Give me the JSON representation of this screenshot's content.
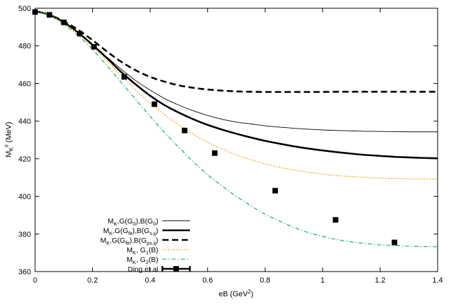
{
  "chart_data": {
    "type": "line",
    "xlabel": {
      "main": "eB (GeV",
      "sup": "2",
      "tail": ")"
    },
    "ylabel": {
      "main": "M",
      "sub": "K",
      "sup": "0",
      "tail": " (MeV)"
    },
    "xlim": [
      0,
      1.4
    ],
    "ylim": [
      360,
      500
    ],
    "xticks": [
      0,
      0.2,
      0.4,
      0.6,
      0.8,
      1,
      1.2,
      1.4
    ],
    "xtick_labels": [
      "0",
      "0.2",
      "0.4",
      "0.6",
      "0.8",
      "1",
      "1.2",
      "1.4"
    ],
    "yticks": [
      360,
      380,
      400,
      420,
      440,
      460,
      480,
      500
    ],
    "ytick_labels": [
      "360",
      "380",
      "400",
      "420",
      "440",
      "460",
      "480",
      "500"
    ],
    "grid": false,
    "legend_position": "bottom-left",
    "series": [
      {
        "legend": [
          {
            "t": "M"
          },
          {
            "t": "K",
            "s": "sub"
          },
          {
            "t": ",G(G"
          },
          {
            "t": "0",
            "s": "sub"
          },
          {
            "t": "),B(G"
          },
          {
            "t": "0",
            "s": "sub"
          },
          {
            "t": ")"
          }
        ],
        "style": "thin-solid",
        "color": "#000000",
        "x": [
          0,
          0.05,
          0.1,
          0.15,
          0.2,
          0.25,
          0.3,
          0.35,
          0.4,
          0.45,
          0.5,
          0.55,
          0.6,
          0.65,
          0.7,
          0.75,
          0.8,
          0.85,
          0.9,
          0.95,
          1.0,
          1.05,
          1.1,
          1.15,
          1.2,
          1.25,
          1.3,
          1.35,
          1.4
        ],
        "y": [
          498.5,
          496.5,
          492.5,
          487.0,
          480.5,
          474.0,
          467.5,
          461.5,
          456.5,
          452.0,
          448.5,
          445.5,
          443.0,
          441.0,
          439.5,
          438.5,
          437.5,
          436.8,
          436.2,
          435.7,
          435.3,
          435.0,
          434.8,
          434.6,
          434.5,
          434.4,
          434.3,
          434.3,
          434.3
        ]
      },
      {
        "legend": [
          {
            "t": "M"
          },
          {
            "t": "K",
            "s": "sub"
          },
          {
            "t": ",G(G"
          },
          {
            "t": "fit",
            "s": "sub"
          },
          {
            "t": "),B(G"
          },
          {
            "t": "s,ij",
            "s": "sub"
          },
          {
            "t": ")"
          }
        ],
        "style": "thick-solid",
        "color": "#000000",
        "x": [
          0,
          0.05,
          0.1,
          0.15,
          0.2,
          0.25,
          0.3,
          0.35,
          0.4,
          0.45,
          0.5,
          0.55,
          0.6,
          0.65,
          0.7,
          0.75,
          0.8,
          0.85,
          0.9,
          0.95,
          1.0,
          1.05,
          1.1,
          1.15,
          1.2,
          1.25,
          1.3,
          1.35,
          1.4
        ],
        "y": [
          498.5,
          496.5,
          492.5,
          487.0,
          480.5,
          473.5,
          466.0,
          459.5,
          453.5,
          448.5,
          444.5,
          441.0,
          438.0,
          435.5,
          433.3,
          431.3,
          429.5,
          428.0,
          426.6,
          425.4,
          424.4,
          423.5,
          422.7,
          422.0,
          421.5,
          421.0,
          420.7,
          420.4,
          420.2
        ]
      },
      {
        "legend": [
          {
            "t": "M"
          },
          {
            "t": "K",
            "s": "sub"
          },
          {
            "t": ",G(G"
          },
          {
            "t": "fit",
            "s": "sub"
          },
          {
            "t": "),B(G"
          },
          {
            "t": "ps,ij",
            "s": "sub"
          },
          {
            "t": ")"
          }
        ],
        "style": "thick-dashed",
        "color": "#000000",
        "x": [
          0,
          0.05,
          0.1,
          0.15,
          0.2,
          0.25,
          0.3,
          0.35,
          0.4,
          0.45,
          0.5,
          0.55,
          0.6,
          0.65,
          0.7,
          0.75,
          0.8,
          0.85,
          0.9,
          0.95,
          1.0,
          1.05,
          1.1,
          1.15,
          1.2,
          1.25,
          1.3,
          1.35,
          1.4
        ],
        "y": [
          498.5,
          496.5,
          493.0,
          488.5,
          483.0,
          477.0,
          471.5,
          467.0,
          463.5,
          461.0,
          459.0,
          457.7,
          456.8,
          456.2,
          455.8,
          455.6,
          455.5,
          455.5,
          455.5,
          455.5,
          455.5,
          455.6,
          455.6,
          455.6,
          455.6,
          455.6,
          455.6,
          455.6,
          455.6
        ]
      },
      {
        "legend": [
          {
            "t": "M"
          },
          {
            "t": "K",
            "s": "sub"
          },
          {
            "t": ", G"
          },
          {
            "t": "1",
            "s": "sub"
          },
          {
            "t": "(B)"
          }
        ],
        "style": "dotted",
        "color": "#e69f00",
        "x": [
          0,
          0.05,
          0.1,
          0.15,
          0.2,
          0.25,
          0.3,
          0.35,
          0.4,
          0.45,
          0.5,
          0.55,
          0.6,
          0.65,
          0.7,
          0.75,
          0.8,
          0.85,
          0.9,
          0.95,
          1.0,
          1.05,
          1.1,
          1.15,
          1.2,
          1.25,
          1.3,
          1.35,
          1.4
        ],
        "y": [
          498.5,
          496.5,
          492.0,
          486.5,
          479.5,
          472.0,
          464.0,
          456.5,
          449.5,
          443.5,
          438.0,
          433.0,
          428.8,
          425.2,
          422.0,
          419.5,
          417.3,
          415.5,
          414.0,
          412.8,
          411.8,
          411.0,
          410.5,
          410.0,
          409.7,
          409.5,
          409.3,
          409.2,
          409.1
        ]
      },
      {
        "legend": [
          {
            "t": "M"
          },
          {
            "t": "K",
            "s": "sub"
          },
          {
            "t": ", G"
          },
          {
            "t": "2",
            "s": "sub"
          },
          {
            "t": "(B)"
          }
        ],
        "style": "dash-dot",
        "color": "#009e73",
        "x": [
          0,
          0.05,
          0.1,
          0.15,
          0.2,
          0.25,
          0.3,
          0.35,
          0.4,
          0.45,
          0.5,
          0.55,
          0.6,
          0.65,
          0.7,
          0.75,
          0.8,
          0.85,
          0.9,
          0.95,
          1.0,
          1.05,
          1.1,
          1.15,
          1.2,
          1.25,
          1.3,
          1.35,
          1.4
        ],
        "y": [
          498.5,
          496.0,
          491.5,
          485.5,
          478.0,
          469.5,
          460.5,
          451.5,
          442.5,
          434.0,
          426.0,
          418.5,
          411.5,
          405.5,
          400.0,
          395.0,
          390.5,
          386.8,
          383.5,
          380.8,
          378.7,
          377.0,
          375.8,
          374.9,
          374.2,
          373.8,
          373.5,
          373.3,
          373.2
        ]
      },
      {
        "legend": [
          {
            "t": "Ding et al"
          }
        ],
        "style": "points-errorbars",
        "color": "#000000",
        "x": [
          0,
          0.05,
          0.1,
          0.155,
          0.205,
          0.31,
          0.415,
          0.52,
          0.625,
          0.835,
          1.045,
          1.25
        ],
        "y": [
          498.0,
          496.5,
          492.5,
          486.5,
          479.5,
          463.5,
          449.0,
          435.0,
          423.0,
          403.0,
          387.5,
          375.5
        ]
      }
    ]
  }
}
